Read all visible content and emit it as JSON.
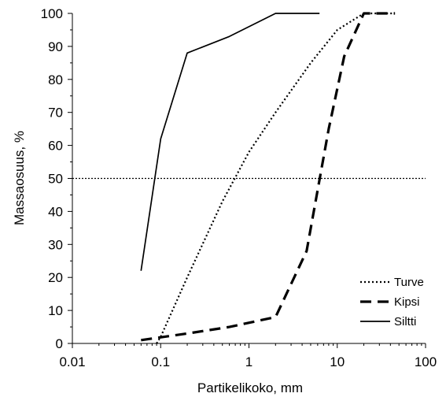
{
  "chart_data": {
    "type": "line",
    "xlabel": "Partikelikoko, mm",
    "ylabel": "Massaosuus, %",
    "x_scale": "log",
    "xlim": [
      0.01,
      100
    ],
    "ylim": [
      0,
      100
    ],
    "x_ticks": [
      {
        "value": 0.01,
        "label": "0.01"
      },
      {
        "value": 0.1,
        "label": "0.1"
      },
      {
        "value": 1,
        "label": "1"
      },
      {
        "value": 10,
        "label": "10"
      },
      {
        "value": 100,
        "label": "100"
      }
    ],
    "y_ticks": [
      0,
      10,
      20,
      30,
      40,
      50,
      60,
      70,
      80,
      90,
      100
    ],
    "grid": false,
    "legend_position": "bottom-right",
    "reference_line": {
      "y": 50,
      "style": "dotted"
    },
    "series": [
      {
        "name": "Turve",
        "style": "dotted",
        "color": "#000000",
        "points": [
          [
            0.09,
            0
          ],
          [
            0.1,
            2
          ],
          [
            0.2,
            20
          ],
          [
            0.5,
            43
          ],
          [
            1,
            58
          ],
          [
            2,
            70
          ],
          [
            5,
            85
          ],
          [
            10,
            95
          ],
          [
            20,
            100
          ],
          [
            45,
            100
          ]
        ]
      },
      {
        "name": "Kipsi",
        "style": "dashed",
        "color": "#000000",
        "points": [
          [
            0.06,
            1
          ],
          [
            0.2,
            3
          ],
          [
            0.6,
            5
          ],
          [
            2,
            8
          ],
          [
            4.5,
            28
          ],
          [
            8,
            65
          ],
          [
            12,
            87
          ],
          [
            20,
            100
          ],
          [
            45,
            100
          ]
        ]
      },
      {
        "name": "Siltti",
        "style": "solid",
        "color": "#000000",
        "points": [
          [
            0.06,
            22
          ],
          [
            0.1,
            62
          ],
          [
            0.2,
            88
          ],
          [
            0.6,
            93
          ],
          [
            2,
            100
          ],
          [
            6.3,
            100
          ]
        ]
      }
    ]
  }
}
